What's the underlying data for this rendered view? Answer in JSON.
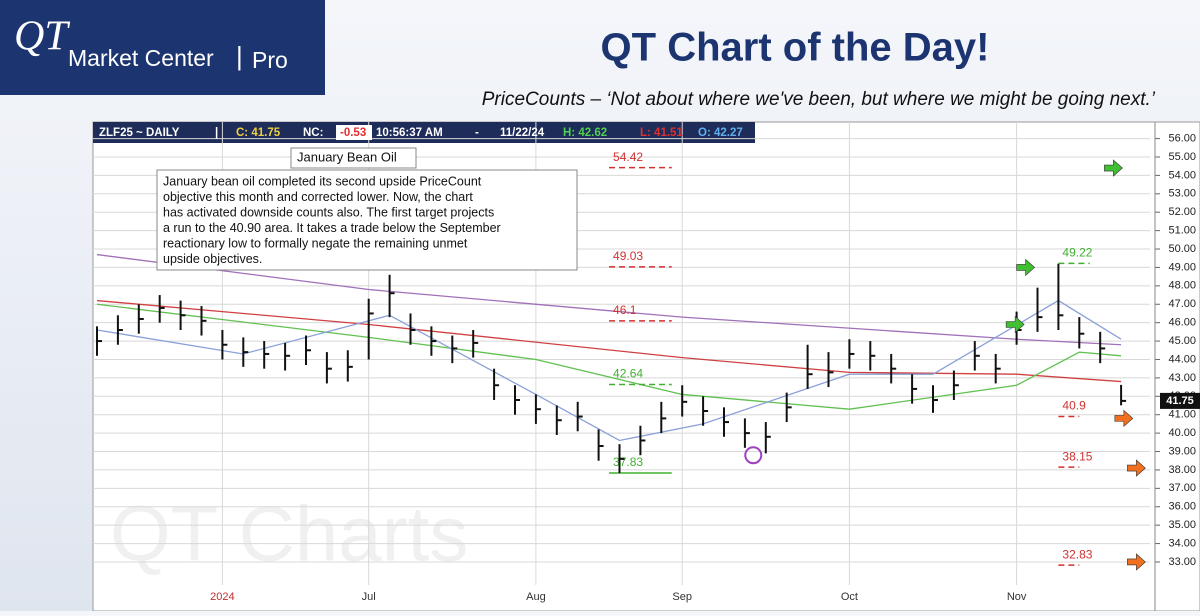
{
  "header": {
    "logo_mark": "QT",
    "logo_text": "Market Center",
    "logo_sep": "|",
    "logo_pro": "Pro",
    "title": "QT Chart of the Day!",
    "subtitle": "PriceCounts – ‘Not about where we've been, but where we might be going next.’"
  },
  "chart_data": {
    "type": "ohlc",
    "ticker_bar": {
      "symbol": "ZLF25 ~ DAILY",
      "sep": "|",
      "close": "C: 41.75",
      "nc_label": "NC:",
      "nc": "-0.53",
      "time": "10:56:37 AM",
      "dash": "-",
      "date": "11/22/24",
      "high": "H: 42.62",
      "low": "L: 41.51",
      "open": "O: 42.27"
    },
    "note_title": "January Bean Oil",
    "note_lines": [
      "January bean oil completed its second upside PriceCount",
      "objective this month and corrected lower.  Now, the chart",
      "has activated downside counts also.  The first target projects",
      "a run to the 40.90 area. It takes a trade below the September",
      "reactionary low to formally negate the remaining unmet",
      "upside objectives."
    ],
    "watermark": "QT Charts",
    "categories": [
      null,
      null,
      null,
      null,
      null,
      null,
      "2024",
      null,
      null,
      null,
      null,
      null,
      null,
      "Jul",
      null,
      null,
      null,
      null,
      null,
      null,
      null,
      "Aug",
      null,
      null,
      null,
      null,
      null,
      null,
      "Sep",
      null,
      null,
      null,
      null,
      null,
      null,
      null,
      "Oct",
      null,
      null,
      null,
      null,
      null,
      null,
      null,
      "Nov",
      null,
      null,
      null,
      null,
      null
    ],
    "highs": [
      45.8,
      46.4,
      47.0,
      47.5,
      47.2,
      46.9,
      45.6,
      45.2,
      45.0,
      44.9,
      45.3,
      44.4,
      44.5,
      47.3,
      48.6,
      46.5,
      45.8,
      45.3,
      45.6,
      43.5,
      42.6,
      42.1,
      41.5,
      41.7,
      40.2,
      39.4,
      40.4,
      41.7,
      42.6,
      42.0,
      41.4,
      40.8,
      40.6,
      42.2,
      44.8,
      44.4,
      45.1,
      45.0,
      44.3,
      43.2,
      42.6,
      43.4,
      45.0,
      44.3,
      46.6,
      47.9,
      49.2,
      46.3,
      45.5,
      42.62
    ],
    "lows": [
      44.2,
      44.8,
      45.4,
      46.0,
      45.6,
      45.3,
      44.0,
      43.6,
      43.5,
      43.4,
      43.7,
      42.7,
      42.8,
      44.0,
      46.3,
      44.8,
      44.2,
      43.8,
      44.1,
      41.8,
      41.0,
      40.5,
      39.9,
      40.1,
      38.5,
      37.83,
      38.8,
      40.0,
      40.9,
      40.4,
      39.8,
      39.2,
      38.9,
      40.6,
      42.4,
      42.5,
      43.5,
      43.4,
      42.7,
      41.6,
      41.1,
      41.8,
      43.4,
      42.7,
      44.8,
      45.5,
      45.6,
      44.6,
      43.8,
      41.51
    ],
    "closes": [
      45.0,
      45.6,
      46.2,
      46.8,
      46.4,
      46.1,
      44.8,
      44.4,
      44.3,
      44.2,
      44.5,
      43.5,
      43.6,
      46.5,
      47.6,
      45.6,
      45.0,
      44.6,
      44.9,
      42.6,
      41.8,
      41.3,
      40.7,
      40.9,
      39.3,
      38.6,
      39.6,
      40.8,
      41.7,
      41.2,
      40.6,
      40.0,
      39.8,
      41.4,
      43.2,
      43.3,
      44.3,
      44.2,
      43.5,
      42.4,
      41.8,
      42.6,
      44.2,
      43.5,
      45.6,
      46.3,
      46.4,
      45.4,
      44.6,
      41.75
    ],
    "last_price": 41.75,
    "averages": [
      {
        "color": "#a070b8",
        "x": [
          0,
          13,
          28,
          44,
          49
        ],
        "values": [
          49.7,
          47.8,
          46.3,
          45.1,
          44.8
        ]
      },
      {
        "color": "#d04040",
        "x": [
          0,
          13,
          28,
          36,
          44,
          49
        ],
        "values": [
          47.2,
          45.9,
          44.1,
          43.3,
          43.2,
          42.8
        ]
      },
      {
        "color": "#60c050",
        "x": [
          0,
          13,
          21,
          28,
          36,
          44,
          47,
          49
        ],
        "values": [
          47.0,
          45.2,
          44.0,
          42.1,
          41.3,
          42.6,
          44.4,
          44.2
        ]
      },
      {
        "color": "#8aa0d8",
        "x": [
          0,
          7,
          14,
          21,
          25,
          29,
          36,
          40,
          46,
          49
        ],
        "values": [
          45.6,
          44.3,
          46.4,
          42.1,
          39.6,
          40.5,
          43.2,
          43.2,
          47.2,
          45.1
        ]
      }
    ],
    "levels": [
      {
        "value": 54.42,
        "color": "#d03030",
        "x": [
          24.5,
          27.5
        ]
      },
      {
        "value": 49.03,
        "color": "#d03030",
        "x": [
          24.5,
          27.5
        ]
      },
      {
        "value": 46.1,
        "color": "#d03030",
        "x": [
          24.5,
          27.5
        ]
      },
      {
        "value": 42.64,
        "color": "#40b030",
        "x": [
          24.5,
          27.5
        ]
      },
      {
        "value": 37.83,
        "color": "#40b030",
        "x": [
          24.5,
          27.5
        ]
      },
      {
        "value": 49.22,
        "color": "#40b030",
        "x": [
          46,
          47.5
        ]
      },
      {
        "value": 40.9,
        "color": "#d03030",
        "x": [
          46,
          47
        ]
      },
      {
        "value": 38.15,
        "color": "#d03030",
        "x": [
          46,
          47
        ]
      },
      {
        "value": 32.83,
        "color": "#d03030",
        "x": [
          46,
          47
        ]
      }
    ],
    "arrows": [
      {
        "value": 54.4,
        "color": "#40c030",
        "x": 48.2
      },
      {
        "value": 49.0,
        "color": "#40c030",
        "x": 44
      },
      {
        "value": 45.9,
        "color": "#40c030",
        "x": 43.5
      },
      {
        "value": 40.8,
        "color": "#f07020",
        "x": 48.7
      },
      {
        "value": 38.1,
        "color": "#f07020",
        "x": 49.3
      },
      {
        "value": 33.0,
        "color": "#f07020",
        "x": 49.3
      }
    ],
    "circle": {
      "value": 38.8,
      "x": 31.4
    },
    "ylim": [
      30.5,
      56.9
    ],
    "yticks": [
      {
        "value": 33,
        "label": "33.00"
      },
      {
        "value": 34,
        "label": "34.00"
      },
      {
        "value": 35,
        "label": "35.00"
      },
      {
        "value": 36,
        "label": "36.00"
      },
      {
        "value": 37,
        "label": "37.00"
      },
      {
        "value": 38,
        "label": "38.00"
      },
      {
        "value": 39,
        "label": "39.00"
      },
      {
        "value": 40,
        "label": "40.00"
      },
      {
        "value": 41,
        "label": "41.00"
      },
      {
        "value": 42,
        "label": "42.00"
      },
      {
        "value": 43,
        "label": "43.00"
      },
      {
        "value": 44,
        "label": "44.00"
      },
      {
        "value": 45,
        "label": "45.00"
      },
      {
        "value": 46,
        "label": "46.00"
      },
      {
        "value": 47,
        "label": "47.00"
      },
      {
        "value": 48,
        "label": "48.00"
      },
      {
        "value": 49,
        "label": "49.00"
      },
      {
        "value": 50,
        "label": "50.00"
      },
      {
        "value": 51,
        "label": "51.00"
      },
      {
        "value": 52,
        "label": "52.00"
      },
      {
        "value": 53,
        "label": "53.00"
      },
      {
        "value": 54,
        "label": "54.00"
      },
      {
        "value": 55,
        "label": "55.00"
      },
      {
        "value": 56,
        "label": "56.00"
      }
    ],
    "grid": true
  }
}
